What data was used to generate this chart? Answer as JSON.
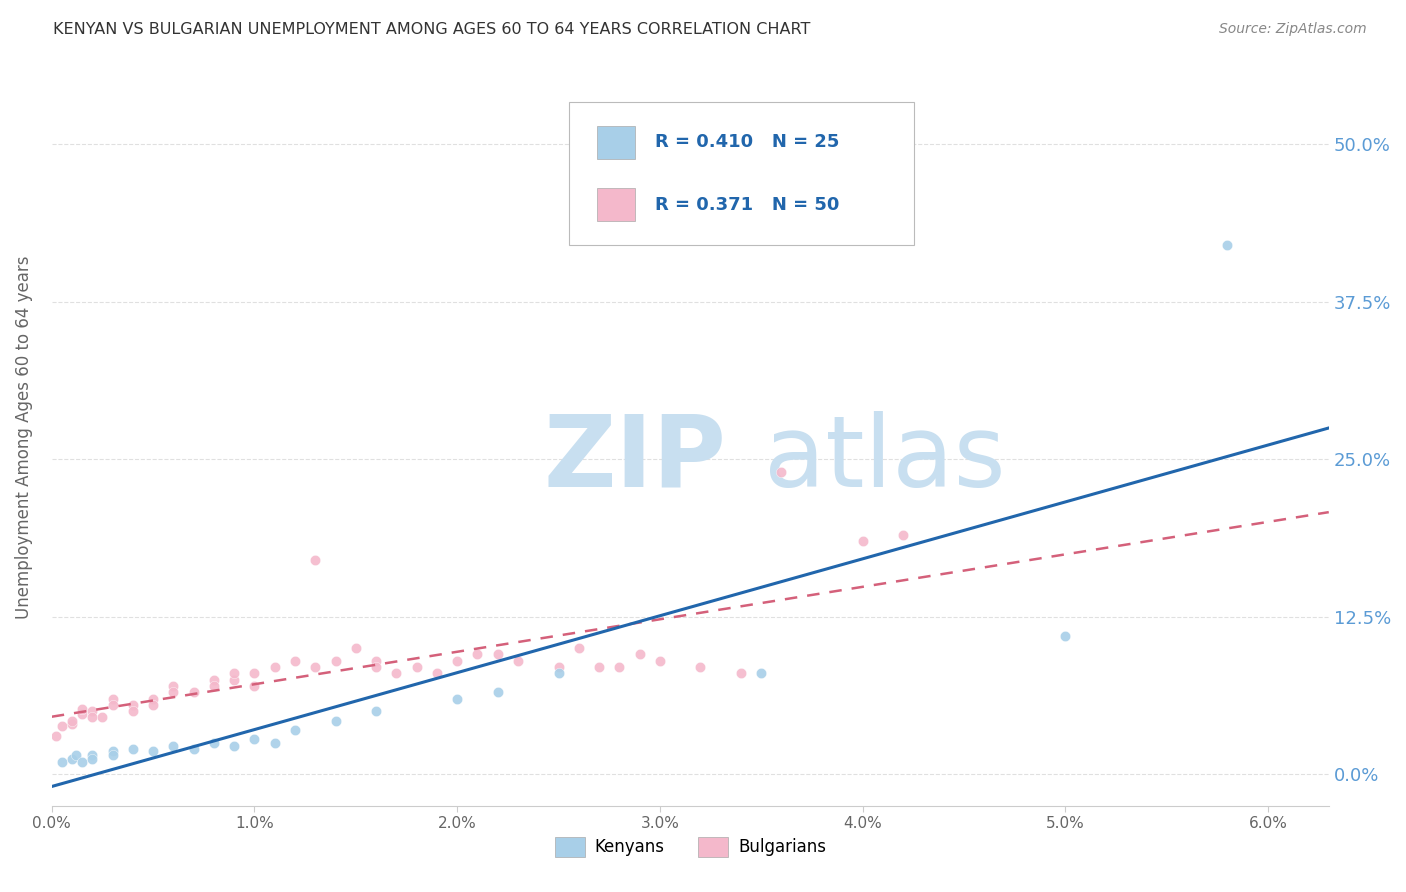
{
  "title": "KENYAN VS BULGARIAN UNEMPLOYMENT AMONG AGES 60 TO 64 YEARS CORRELATION CHART",
  "source": "Source: ZipAtlas.com",
  "ylabel_label": "Unemployment Among Ages 60 to 64 years",
  "legend_label1": "Kenyans",
  "legend_label2": "Bulgarians",
  "R_kenya": 0.41,
  "N_kenya": 25,
  "R_bulgaria": 0.371,
  "N_bulgaria": 50,
  "color_kenya": "#a8cfe8",
  "color_bulgaria": "#f4b8cb",
  "line_color_kenya": "#2166ac",
  "line_color_bulgaria": "#d4607a",
  "background_color": "#ffffff",
  "grid_color": "#cccccc",
  "title_color": "#333333",
  "right_tick_color": "#5b9bd5",
  "kenya_points_x": [
    0.0005,
    0.001,
    0.0012,
    0.0015,
    0.002,
    0.002,
    0.003,
    0.003,
    0.004,
    0.005,
    0.006,
    0.007,
    0.008,
    0.009,
    0.01,
    0.011,
    0.012,
    0.014,
    0.016,
    0.02,
    0.022,
    0.025,
    0.035,
    0.05,
    0.058
  ],
  "kenya_points_y": [
    0.01,
    0.012,
    0.015,
    0.01,
    0.015,
    0.012,
    0.018,
    0.015,
    0.02,
    0.018,
    0.022,
    0.02,
    0.025,
    0.022,
    0.028,
    0.025,
    0.035,
    0.042,
    0.05,
    0.06,
    0.065,
    0.08,
    0.08,
    0.11,
    0.42
  ],
  "bulgaria_points_x": [
    0.0002,
    0.0005,
    0.001,
    0.001,
    0.0015,
    0.0015,
    0.002,
    0.002,
    0.0025,
    0.003,
    0.003,
    0.004,
    0.004,
    0.005,
    0.005,
    0.006,
    0.006,
    0.007,
    0.008,
    0.008,
    0.009,
    0.009,
    0.01,
    0.01,
    0.011,
    0.012,
    0.013,
    0.013,
    0.014,
    0.015,
    0.016,
    0.016,
    0.017,
    0.018,
    0.019,
    0.02,
    0.021,
    0.022,
    0.023,
    0.025,
    0.026,
    0.027,
    0.028,
    0.029,
    0.03,
    0.032,
    0.034,
    0.036,
    0.04,
    0.042
  ],
  "bulgaria_points_y": [
    0.03,
    0.038,
    0.04,
    0.042,
    0.048,
    0.052,
    0.05,
    0.045,
    0.045,
    0.06,
    0.055,
    0.055,
    0.05,
    0.06,
    0.055,
    0.07,
    0.065,
    0.065,
    0.075,
    0.07,
    0.075,
    0.08,
    0.08,
    0.07,
    0.085,
    0.09,
    0.085,
    0.17,
    0.09,
    0.1,
    0.09,
    0.085,
    0.08,
    0.085,
    0.08,
    0.09,
    0.095,
    0.095,
    0.09,
    0.085,
    0.1,
    0.085,
    0.085,
    0.095,
    0.09,
    0.085,
    0.08,
    0.24,
    0.185,
    0.19
  ],
  "xlim": [
    0.0,
    0.063
  ],
  "ylim": [
    -0.025,
    0.56
  ],
  "y_ticks": [
    0.0,
    0.125,
    0.25,
    0.375,
    0.5
  ],
  "y_tick_labels": [
    "0.0%",
    "12.5%",
    "25.0%",
    "37.5%",
    "50.0%"
  ],
  "x_ticks": [
    0.0,
    0.01,
    0.02,
    0.03,
    0.04,
    0.05,
    0.06
  ],
  "x_tick_labels": [
    "0.0%",
    "1.0%",
    "2.0%",
    "3.0%",
    "4.0%",
    "5.0%",
    "6.0%"
  ],
  "watermark_zip_color": "#c8dff0",
  "watermark_atlas_color": "#c8dff0"
}
